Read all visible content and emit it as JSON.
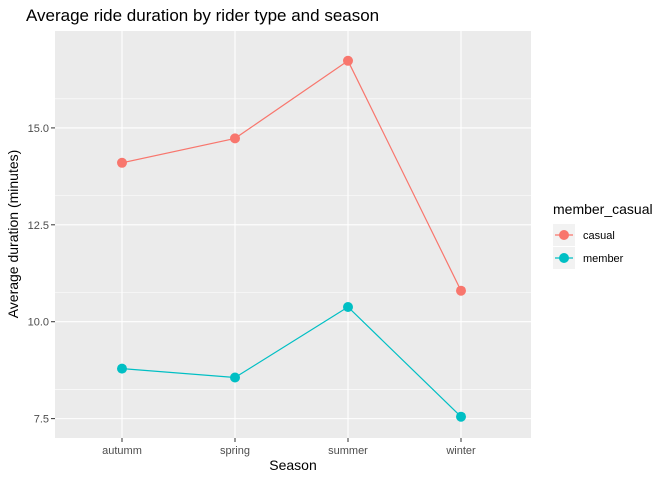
{
  "chart_data": {
    "type": "line",
    "title": "Average ride duration by rider type and season",
    "xlabel": "Season",
    "ylabel": "Average duration (minutes)",
    "categories": [
      "autumm",
      "spring",
      "summer",
      "winter"
    ],
    "yticks": [
      "7.5",
      "10.0",
      "12.5",
      "15.0"
    ],
    "ylim": [
      7.0,
      17.5
    ],
    "legend": {
      "title": "member_casual",
      "position": "right"
    },
    "grid": true,
    "series": [
      {
        "name": "casual",
        "color": "#F8766D",
        "values": [
          14.1,
          14.73,
          16.73,
          10.8
        ]
      },
      {
        "name": "member",
        "color": "#00BFC4",
        "values": [
          8.79,
          8.56,
          10.38,
          7.55
        ]
      }
    ]
  }
}
